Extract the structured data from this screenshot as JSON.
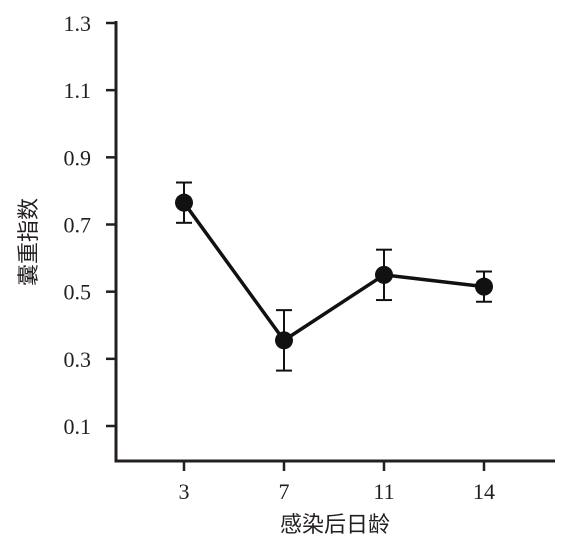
{
  "chart_data": {
    "type": "line",
    "xlabel": "感染后日龄",
    "ylabel": "囊重指数",
    "ylim": [
      0.0,
      1.3
    ],
    "yticks": [
      0.1,
      0.3,
      0.5,
      0.7,
      0.9,
      1.1,
      1.3
    ],
    "ytick_labels": [
      "0.1",
      "0.3",
      "0.5",
      "0.7",
      "0.9",
      "1.1",
      "1.3"
    ],
    "categories": [
      "3",
      "7",
      "11",
      "14"
    ],
    "series": [
      {
        "values": [
          0.765,
          0.355,
          0.55,
          0.515
        ],
        "error": [
          0.06,
          0.09,
          0.075,
          0.045
        ],
        "color": "#111111",
        "marker": "circle"
      }
    ],
    "grid": false,
    "legend": "none"
  }
}
